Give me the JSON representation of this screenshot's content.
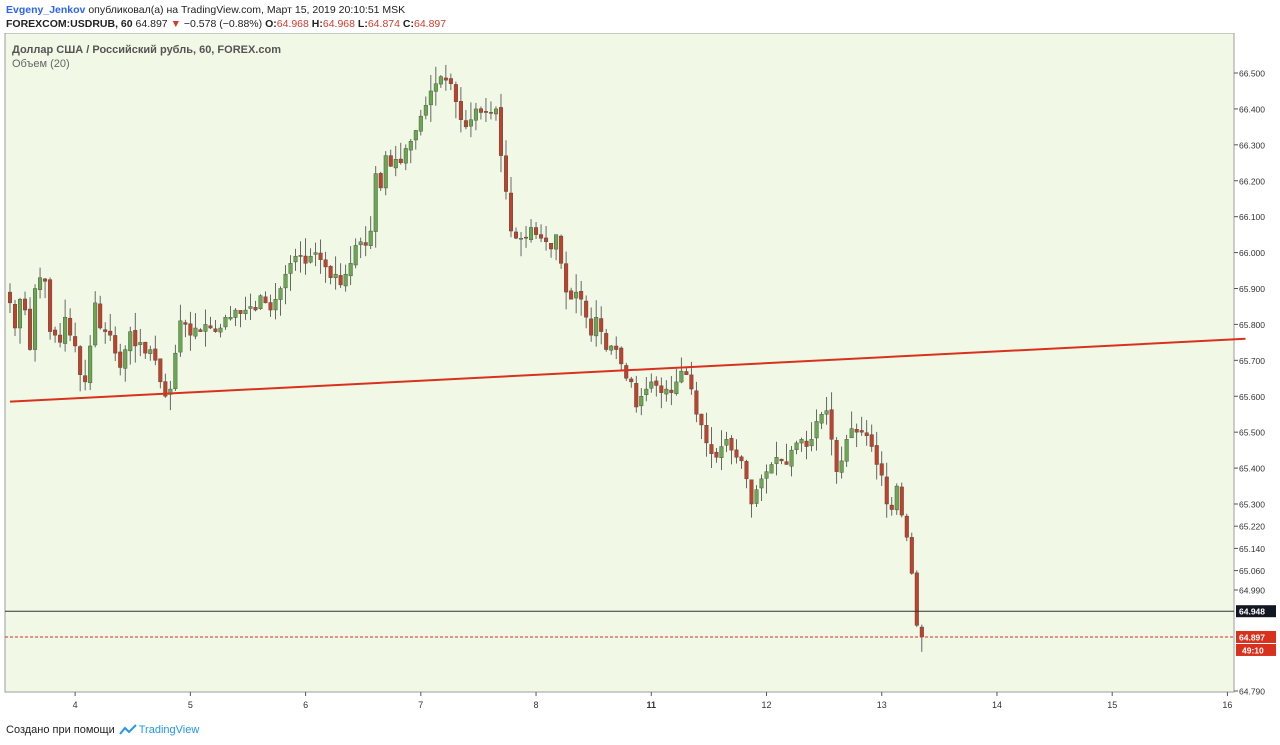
{
  "header": {
    "author": "Evgeny_Jenkov",
    "published_text": "опубликовал(а) на TradingView.com, Март 15, 2019 20:10:51 MSK",
    "symbol": "FOREXCOM:USDRUB, 60",
    "last": "64.897",
    "change_arrow": "▼",
    "change": "−0.578 (−0.88%)",
    "o_label": "O:",
    "o_value": "64.968",
    "h_label": "H:",
    "h_value": "64.968",
    "l_label": "L:",
    "l_value": "64.874",
    "c_label": "C:",
    "c_value": "64.897"
  },
  "overlay": {
    "title": "Доллар США / Российский рубль, 60, FOREX.com",
    "volume": "Объем (20)"
  },
  "footer": {
    "created_with": "Создано при помощи",
    "brand": "TradingView"
  },
  "colors": {
    "background": "#f1f8e6",
    "up": "#6aa84f",
    "down": "#c0422a",
    "trendline": "#d8321e",
    "label_dark": "#131722",
    "label_red": "#d8321e"
  },
  "chart_data": {
    "type": "candlestick",
    "x_ticks": [
      {
        "label": "4",
        "bar": 13,
        "bold": false
      },
      {
        "label": "5",
        "bar": 36,
        "bold": false
      },
      {
        "label": "6",
        "bar": 59,
        "bold": false
      },
      {
        "label": "7",
        "bar": 82,
        "bold": false
      },
      {
        "label": "8",
        "bar": 105,
        "bold": false
      },
      {
        "label": "11",
        "bar": 128,
        "bold": true
      },
      {
        "label": "12",
        "bar": 151,
        "bold": false
      },
      {
        "label": "13",
        "bar": 174,
        "bold": false
      },
      {
        "label": "14",
        "bar": 197,
        "bold": false
      },
      {
        "label": "15",
        "bar": 220,
        "bold": false
      },
      {
        "label": "16",
        "bar": 243,
        "bold": false
      }
    ],
    "y_ticks": [
      "66.500",
      "66.400",
      "66.300",
      "66.200",
      "66.100",
      "66.000",
      "65.900",
      "65.800",
      "65.700",
      "65.600",
      "65.500",
      "65.400",
      "65.300",
      "65.220",
      "65.140",
      "65.060",
      "64.990",
      "64.790"
    ],
    "y_range": [
      64.79,
      66.5
    ],
    "last_price": 64.897,
    "prev_close": 64.948,
    "last_price_label": "64.897",
    "prev_close_label": "64.948",
    "countdown_label": "49:10",
    "trendline": {
      "start": [
        0,
        65.585
      ],
      "end": [
        246,
        65.76
      ]
    },
    "closes": [
      65.86,
      65.79,
      65.87,
      65.84,
      65.73,
      65.9,
      65.93,
      65.92,
      65.78,
      65.77,
      65.75,
      65.82,
      65.77,
      65.74,
      65.66,
      65.64,
      65.74,
      65.86,
      65.79,
      65.78,
      65.77,
      65.72,
      65.68,
      65.73,
      65.78,
      65.74,
      65.75,
      65.72,
      65.73,
      65.7,
      65.64,
      65.6,
      65.62,
      65.72,
      65.81,
      65.8,
      65.77,
      65.79,
      65.78,
      65.8,
      65.79,
      65.78,
      65.79,
      65.82,
      65.82,
      65.84,
      65.83,
      65.84,
      65.85,
      65.84,
      65.88,
      65.86,
      65.84,
      65.87,
      65.9,
      65.94,
      65.97,
      65.99,
      65.99,
      65.97,
      65.99,
      66.0,
      65.98,
      65.96,
      65.93,
      65.94,
      65.91,
      65.94,
      65.97,
      66.02,
      66.03,
      66.02,
      66.06,
      66.22,
      66.18,
      66.27,
      66.24,
      66.26,
      66.25,
      66.29,
      66.31,
      66.34,
      66.38,
      66.41,
      66.45,
      66.47,
      66.49,
      66.48,
      66.47,
      66.42,
      66.37,
      66.35,
      66.37,
      66.4,
      66.39,
      66.39,
      66.39,
      66.4,
      66.27,
      66.17,
      66.06,
      66.04,
      66.04,
      66.04,
      66.07,
      66.05,
      66.04,
      66.03,
      66.01,
      66.05,
      65.97,
      65.89,
      65.87,
      65.89,
      65.87,
      65.82,
      65.77,
      65.82,
      65.78,
      65.73,
      65.74,
      65.73,
      65.69,
      65.65,
      65.64,
      65.57,
      65.6,
      65.62,
      65.64,
      65.63,
      65.61,
      65.62,
      65.61,
      65.64,
      65.67,
      65.66,
      65.62,
      65.55,
      65.52,
      65.47,
      65.44,
      65.43,
      65.46,
      65.48,
      65.45,
      65.43,
      65.42,
      65.37,
      65.3,
      65.34,
      65.37,
      65.39,
      65.41,
      65.43,
      65.42,
      65.41,
      65.45,
      65.47,
      65.48,
      65.46,
      65.48,
      65.53,
      65.55,
      65.56,
      65.48,
      65.39,
      65.42,
      65.48,
      65.51,
      65.5,
      65.5,
      65.49,
      65.46,
      65.41,
      65.38,
      65.3,
      65.28,
      65.35,
      65.26,
      65.18,
      65.05,
      64.92,
      64.897
    ]
  }
}
